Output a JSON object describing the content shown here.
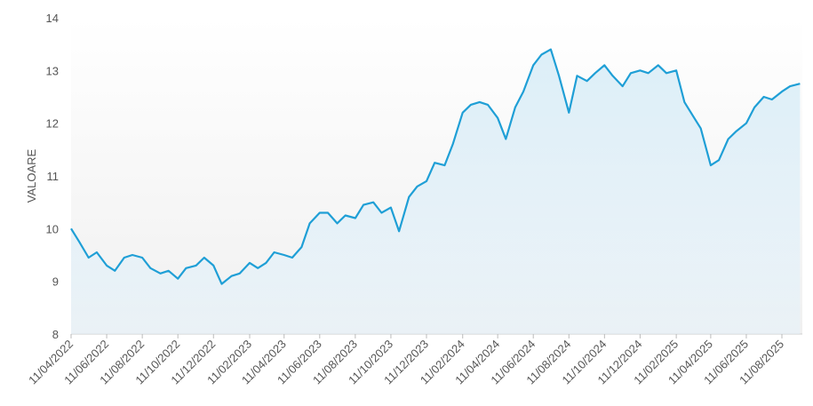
{
  "chart_data": {
    "type": "line",
    "y_label": "VALOARE",
    "x": [
      "11/04/2022",
      "25/04/2022",
      "11/05/2022",
      "25/05/2022",
      "11/06/2022",
      "25/06/2022",
      "11/07/2022",
      "25/07/2022",
      "11/08/2022",
      "25/08/2022",
      "11/09/2022",
      "25/09/2022",
      "11/10/2022",
      "25/10/2022",
      "11/11/2022",
      "25/11/2022",
      "11/12/2022",
      "25/12/2022",
      "11/01/2023",
      "25/01/2023",
      "11/02/2023",
      "25/02/2023",
      "11/03/2023",
      "25/03/2023",
      "11/04/2023",
      "25/04/2023",
      "11/05/2023",
      "25/05/2023",
      "11/06/2023",
      "25/06/2023",
      "11/07/2023",
      "25/07/2023",
      "11/08/2023",
      "25/08/2023",
      "11/09/2023",
      "25/09/2023",
      "11/10/2023",
      "25/10/2023",
      "11/11/2023",
      "25/11/2023",
      "11/12/2023",
      "25/12/2023",
      "11/01/2024",
      "25/01/2024",
      "11/02/2024",
      "25/02/2024",
      "11/03/2024",
      "25/03/2024",
      "11/04/2024",
      "25/04/2024",
      "11/05/2024",
      "25/05/2024",
      "11/06/2024",
      "25/06/2024",
      "11/07/2024",
      "25/07/2024",
      "11/08/2024",
      "25/08/2024",
      "11/09/2024",
      "25/09/2024",
      "11/10/2024",
      "25/10/2024",
      "11/11/2024",
      "25/11/2024",
      "11/12/2024",
      "25/12/2024",
      "11/01/2025",
      "25/01/2025",
      "11/02/2025",
      "25/02/2025",
      "11/03/2025",
      "25/03/2025",
      "11/04/2025",
      "25/04/2025",
      "11/05/2025",
      "25/05/2025",
      "11/06/2025",
      "25/06/2025",
      "11/07/2025",
      "25/07/2025",
      "11/08/2025",
      "25/08/2025",
      "11/09/2025"
    ],
    "series": [
      {
        "name": "VALOARE",
        "color": "#1f9fd6",
        "values": [
          10.0,
          9.75,
          9.45,
          9.55,
          9.3,
          9.2,
          9.45,
          9.5,
          9.45,
          9.25,
          9.15,
          9.2,
          9.05,
          9.25,
          9.3,
          9.45,
          9.3,
          8.95,
          9.1,
          9.15,
          9.35,
          9.25,
          9.35,
          9.55,
          9.5,
          9.45,
          9.65,
          10.1,
          10.3,
          10.3,
          10.1,
          10.25,
          10.2,
          10.45,
          10.5,
          10.3,
          10.4,
          9.95,
          10.6,
          10.8,
          10.9,
          11.25,
          11.2,
          11.6,
          12.2,
          12.35,
          12.4,
          12.35,
          12.1,
          11.7,
          12.3,
          12.6,
          13.1,
          13.3,
          13.4,
          12.9,
          12.2,
          12.9,
          12.8,
          12.95,
          13.1,
          12.9,
          12.7,
          12.95,
          13.0,
          12.95,
          13.1,
          12.95,
          13.0,
          12.4,
          12.15,
          11.9,
          11.2,
          11.3,
          11.7,
          11.85,
          12.0,
          12.3,
          12.5,
          12.45,
          12.6,
          12.7,
          12.75
        ]
      }
    ],
    "xlim": [
      "11/04/2022",
      "15/09/2025"
    ],
    "xticks": [
      "11/04/2022",
      "11/06/2022",
      "11/08/2022",
      "11/10/2022",
      "11/12/2022",
      "11/02/2023",
      "11/04/2023",
      "11/06/2023",
      "11/08/2023",
      "11/10/2023",
      "11/12/2023",
      "11/02/2024",
      "11/04/2024",
      "11/06/2024",
      "11/08/2024",
      "11/10/2024",
      "11/12/2024",
      "11/02/2025",
      "11/04/2025",
      "11/06/2025",
      "11/08/2025"
    ],
    "ylim": [
      8,
      14
    ],
    "yticks": [
      8,
      9,
      10,
      11,
      12,
      13,
      14
    ],
    "grid": false
  }
}
